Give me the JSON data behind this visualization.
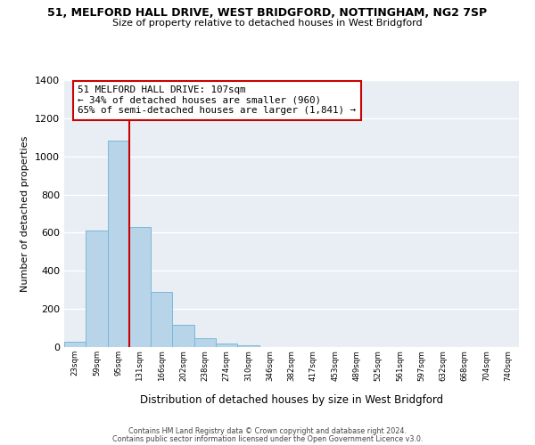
{
  "title": "51, MELFORD HALL DRIVE, WEST BRIDGFORD, NOTTINGHAM, NG2 7SP",
  "subtitle": "Size of property relative to detached houses in West Bridgford",
  "xlabel": "Distribution of detached houses by size in West Bridgford",
  "ylabel": "Number of detached properties",
  "bin_labels": [
    "23sqm",
    "59sqm",
    "95sqm",
    "131sqm",
    "166sqm",
    "202sqm",
    "238sqm",
    "274sqm",
    "310sqm",
    "346sqm",
    "382sqm",
    "417sqm",
    "453sqm",
    "489sqm",
    "525sqm",
    "561sqm",
    "597sqm",
    "632sqm",
    "668sqm",
    "704sqm",
    "740sqm"
  ],
  "bar_values": [
    30,
    610,
    1085,
    630,
    290,
    115,
    45,
    18,
    10,
    0,
    0,
    0,
    0,
    0,
    0,
    0,
    0,
    0,
    0,
    0,
    0
  ],
  "bar_color": "#b8d4e8",
  "bar_edge_color": "#7ab8d9",
  "vline_color": "#cc0000",
  "vline_x": 2.5,
  "ylim": [
    0,
    1400
  ],
  "yticks": [
    0,
    200,
    400,
    600,
    800,
    1000,
    1200,
    1400
  ],
  "annotation_title": "51 MELFORD HALL DRIVE: 107sqm",
  "annotation_line1": "← 34% of detached houses are smaller (960)",
  "annotation_line2": "65% of semi-detached houses are larger (1,841) →",
  "annotation_box_color": "#ffffff",
  "annotation_box_edge": "#cc0000",
  "footer1": "Contains HM Land Registry data © Crown copyright and database right 2024.",
  "footer2": "Contains public sector information licensed under the Open Government Licence v3.0.",
  "background_color": "#e8eef4"
}
